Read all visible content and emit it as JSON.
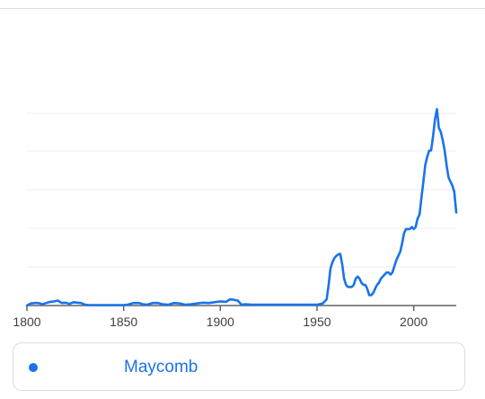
{
  "chart_data": {
    "type": "line",
    "title": "",
    "xlabel": "",
    "ylabel": "",
    "xlim": [
      1800,
      2022
    ],
    "ylim": [
      0,
      1
    ],
    "x_ticks": [
      "1800",
      "1850",
      "1900",
      "1950",
      "2000"
    ],
    "grid": true,
    "y_tick_labels_shown": false,
    "legend_placement": "bottom",
    "series": [
      {
        "name": "Maycomb",
        "color": "#1a73e8",
        "x": [
          1800,
          1802,
          1804,
          1806,
          1808,
          1810,
          1812,
          1814,
          1816,
          1818,
          1820,
          1822,
          1824,
          1826,
          1828,
          1830,
          1832,
          1834,
          1836,
          1840,
          1845,
          1850,
          1852,
          1855,
          1858,
          1860,
          1862,
          1865,
          1868,
          1870,
          1873,
          1876,
          1879,
          1882,
          1885,
          1888,
          1891,
          1894,
          1897,
          1900,
          1903,
          1905,
          1907,
          1909,
          1911,
          1913,
          1916,
          1920,
          1925,
          1930,
          1935,
          1940,
          1945,
          1950,
          1953,
          1955,
          1956,
          1957,
          1958,
          1959,
          1960,
          1961,
          1962,
          1963,
          1964,
          1965,
          1966,
          1967,
          1968,
          1969,
          1970,
          1971,
          1972,
          1973,
          1974,
          1975,
          1976,
          1977,
          1978,
          1979,
          1980,
          1981,
          1982,
          1983,
          1984,
          1985,
          1986,
          1987,
          1988,
          1989,
          1990,
          1991,
          1992,
          1993,
          1994,
          1995,
          1996,
          1997,
          1998,
          1999,
          2000,
          2001,
          2002,
          2003,
          2004,
          2005,
          2006,
          2007,
          2008,
          2009,
          2010,
          2011,
          2012,
          2013,
          2014,
          2015,
          2016,
          2017,
          2018,
          2019,
          2020,
          2021,
          2022
        ],
        "values": [
          0.0,
          0.01,
          0.012,
          0.012,
          0.006,
          0.012,
          0.018,
          0.02,
          0.024,
          0.012,
          0.014,
          0.008,
          0.016,
          0.014,
          0.012,
          0.004,
          0.002,
          0.002,
          0.002,
          0.002,
          0.002,
          0.002,
          0.004,
          0.012,
          0.012,
          0.006,
          0.004,
          0.012,
          0.012,
          0.006,
          0.004,
          0.012,
          0.01,
          0.004,
          0.006,
          0.01,
          0.014,
          0.012,
          0.016,
          0.02,
          0.018,
          0.03,
          0.028,
          0.024,
          0.004,
          0.006,
          0.004,
          0.004,
          0.004,
          0.004,
          0.004,
          0.004,
          0.004,
          0.004,
          0.01,
          0.03,
          0.1,
          0.18,
          0.21,
          0.23,
          0.24,
          0.248,
          0.25,
          0.2,
          0.13,
          0.1,
          0.09,
          0.09,
          0.09,
          0.1,
          0.13,
          0.14,
          0.13,
          0.11,
          0.1,
          0.1,
          0.08,
          0.05,
          0.05,
          0.06,
          0.08,
          0.1,
          0.11,
          0.13,
          0.14,
          0.15,
          0.16,
          0.16,
          0.15,
          0.16,
          0.19,
          0.22,
          0.24,
          0.26,
          0.3,
          0.35,
          0.37,
          0.37,
          0.37,
          0.38,
          0.37,
          0.38,
          0.42,
          0.44,
          0.52,
          0.6,
          0.68,
          0.72,
          0.75,
          0.75,
          0.82,
          0.9,
          0.95,
          0.86,
          0.84,
          0.8,
          0.75,
          0.68,
          0.62,
          0.6,
          0.58,
          0.55,
          0.45
        ]
      }
    ]
  }
}
